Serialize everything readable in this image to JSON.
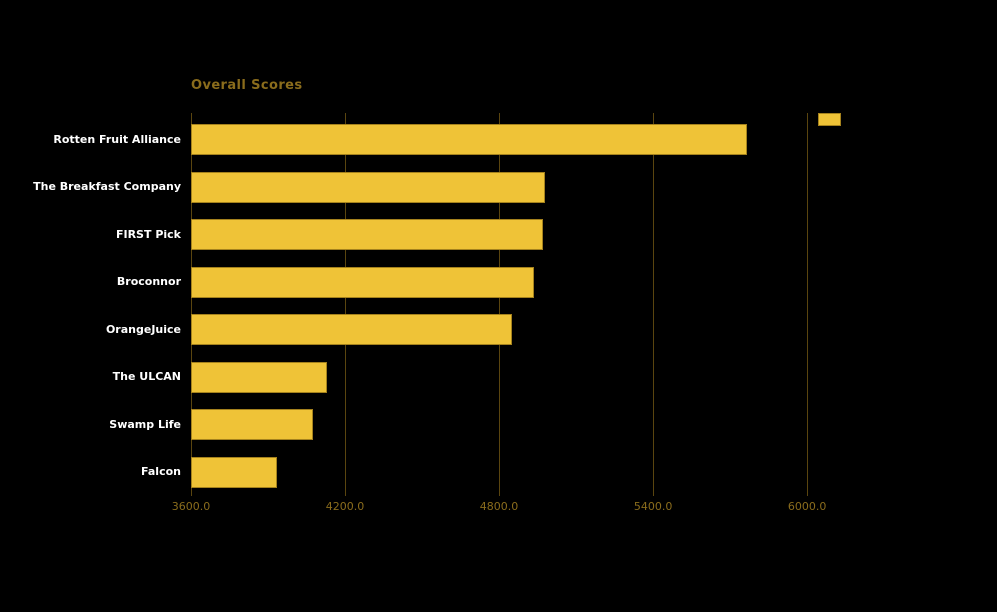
{
  "chart_data": {
    "type": "bar",
    "orientation": "horizontal",
    "title": "Overall Scores",
    "categories": [
      "Rotten Fruit Alliance",
      "The Breakfast Company",
      "FIRST Pick",
      "Broconnor",
      "OrangeJuice",
      "The ULCAN",
      "Swamp Life",
      "Falcon"
    ],
    "values": [
      5765,
      4980,
      4970,
      4935,
      4850,
      4130,
      4075,
      3935
    ],
    "xlabel": "",
    "ylabel": "",
    "xlim": [
      3600,
      6132
    ],
    "xticks": [
      {
        "value": 3600,
        "label": "3600.0"
      },
      {
        "value": 4200,
        "label": "4200.0"
      },
      {
        "value": 4800,
        "label": "4800.0"
      },
      {
        "value": 5400,
        "label": "5400.0"
      },
      {
        "value": 6000,
        "label": "6000.0"
      }
    ],
    "grid": "vertical-only",
    "legend": {
      "position": "top-right",
      "swatch_only": true,
      "label": ""
    },
    "colors": {
      "background": "#000000",
      "bar_fill": "#EFC337",
      "bar_border": "#A5821D",
      "gridline": "#5A450F",
      "axis_text": "#8A6C1C",
      "title_text": "#8A6C1C",
      "category_text": "#FFFFFF"
    }
  }
}
